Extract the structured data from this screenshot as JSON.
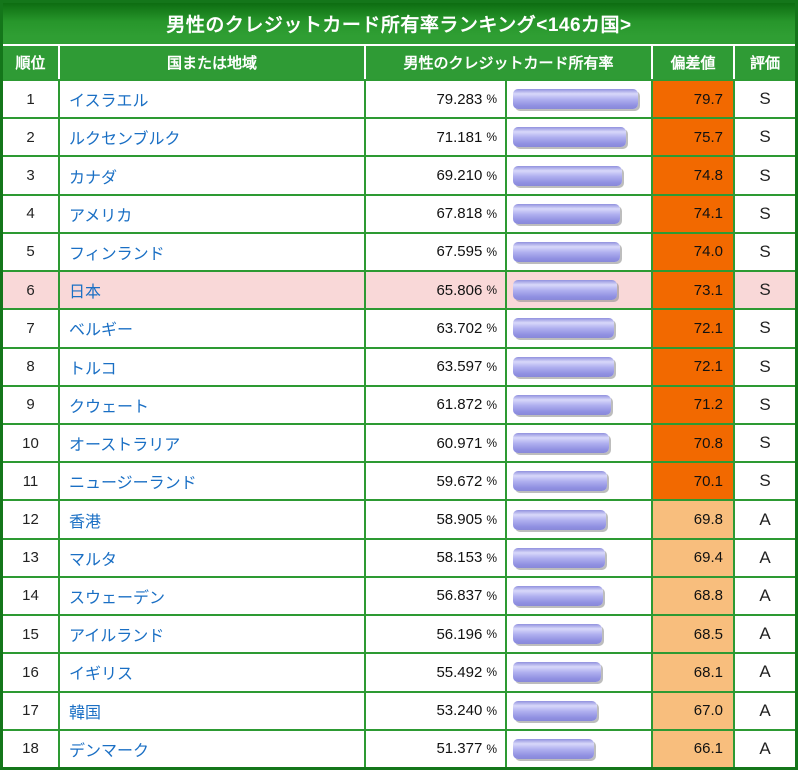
{
  "title": "男性のクレジットカード所有率ランキング<146カ国>",
  "columns": {
    "rank": "順位",
    "country": "国または地域",
    "rate": "男性のクレジットカード所有率",
    "deviation": "偏差値",
    "grade": "評価"
  },
  "unit": "%",
  "colors": {
    "header_green": "#2f9b35",
    "border_green": "#2d9a33",
    "outer_border_green": "#14761a",
    "grade_s_orange": "#f26900",
    "grade_a_orange": "#f8be7d",
    "highlight_pink": "#f9d8d8",
    "link_blue": "#1a6fc4",
    "bar_lavender": "#9a9ae6"
  },
  "rows": [
    {
      "rank": "1",
      "country": "イスラエル",
      "rate": "79.283",
      "deviation": "79.7",
      "grade": "S",
      "highlight": false
    },
    {
      "rank": "2",
      "country": "ルクセンブルク",
      "rate": "71.181",
      "deviation": "75.7",
      "grade": "S",
      "highlight": false
    },
    {
      "rank": "3",
      "country": "カナダ",
      "rate": "69.210",
      "deviation": "74.8",
      "grade": "S",
      "highlight": false
    },
    {
      "rank": "4",
      "country": "アメリカ",
      "rate": "67.818",
      "deviation": "74.1",
      "grade": "S",
      "highlight": false
    },
    {
      "rank": "5",
      "country": "フィンランド",
      "rate": "67.595",
      "deviation": "74.0",
      "grade": "S",
      "highlight": false
    },
    {
      "rank": "6",
      "country": "日本",
      "rate": "65.806",
      "deviation": "73.1",
      "grade": "S",
      "highlight": true
    },
    {
      "rank": "7",
      "country": "ベルギー",
      "rate": "63.702",
      "deviation": "72.1",
      "grade": "S",
      "highlight": false
    },
    {
      "rank": "8",
      "country": "トルコ",
      "rate": "63.597",
      "deviation": "72.1",
      "grade": "S",
      "highlight": false
    },
    {
      "rank": "9",
      "country": "クウェート",
      "rate": "61.872",
      "deviation": "71.2",
      "grade": "S",
      "highlight": false
    },
    {
      "rank": "10",
      "country": "オーストラリア",
      "rate": "60.971",
      "deviation": "70.8",
      "grade": "S",
      "highlight": false
    },
    {
      "rank": "11",
      "country": "ニュージーランド",
      "rate": "59.672",
      "deviation": "70.1",
      "grade": "S",
      "highlight": false
    },
    {
      "rank": "12",
      "country": "香港",
      "rate": "58.905",
      "deviation": "69.8",
      "grade": "A",
      "highlight": false
    },
    {
      "rank": "13",
      "country": "マルタ",
      "rate": "58.153",
      "deviation": "69.4",
      "grade": "A",
      "highlight": false
    },
    {
      "rank": "14",
      "country": "スウェーデン",
      "rate": "56.837",
      "deviation": "68.8",
      "grade": "A",
      "highlight": false
    },
    {
      "rank": "15",
      "country": "アイルランド",
      "rate": "56.196",
      "deviation": "68.5",
      "grade": "A",
      "highlight": false
    },
    {
      "rank": "16",
      "country": "イギリス",
      "rate": "55.492",
      "deviation": "68.1",
      "grade": "A",
      "highlight": false
    },
    {
      "rank": "17",
      "country": "韓国",
      "rate": "53.240",
      "deviation": "67.0",
      "grade": "A",
      "highlight": false
    },
    {
      "rank": "18",
      "country": "デンマーク",
      "rate": "51.377",
      "deviation": "66.1",
      "grade": "A",
      "highlight": false
    }
  ],
  "chart_data": {
    "type": "bar",
    "title": "男性のクレジットカード所有率ランキング<146カ国>",
    "orientation": "horizontal",
    "categories": [
      "イスラエル",
      "ルクセンブルク",
      "カナダ",
      "アメリカ",
      "フィンランド",
      "日本",
      "ベルギー",
      "トルコ",
      "クウェート",
      "オーストラリア",
      "ニュージーランド",
      "香港",
      "マルタ",
      "スウェーデン",
      "アイルランド",
      "イギリス",
      "韓国",
      "デンマーク"
    ],
    "series": [
      {
        "name": "男性のクレジットカード所有率 (%)",
        "values": [
          79.283,
          71.181,
          69.21,
          67.818,
          67.595,
          65.806,
          63.702,
          63.597,
          61.872,
          60.971,
          59.672,
          58.905,
          58.153,
          56.837,
          56.196,
          55.492,
          53.24,
          51.377
        ]
      },
      {
        "name": "偏差値",
        "values": [
          79.7,
          75.7,
          74.8,
          74.1,
          74.0,
          73.1,
          72.1,
          72.1,
          71.2,
          70.8,
          70.1,
          69.8,
          69.4,
          68.8,
          68.5,
          68.1,
          67.0,
          66.1
        ]
      }
    ],
    "grades": [
      "S",
      "S",
      "S",
      "S",
      "S",
      "S",
      "S",
      "S",
      "S",
      "S",
      "S",
      "A",
      "A",
      "A",
      "A",
      "A",
      "A",
      "A"
    ],
    "highlighted_category": "日本",
    "xlim": [
      0,
      100
    ],
    "legend_position": "none",
    "grid": false
  }
}
